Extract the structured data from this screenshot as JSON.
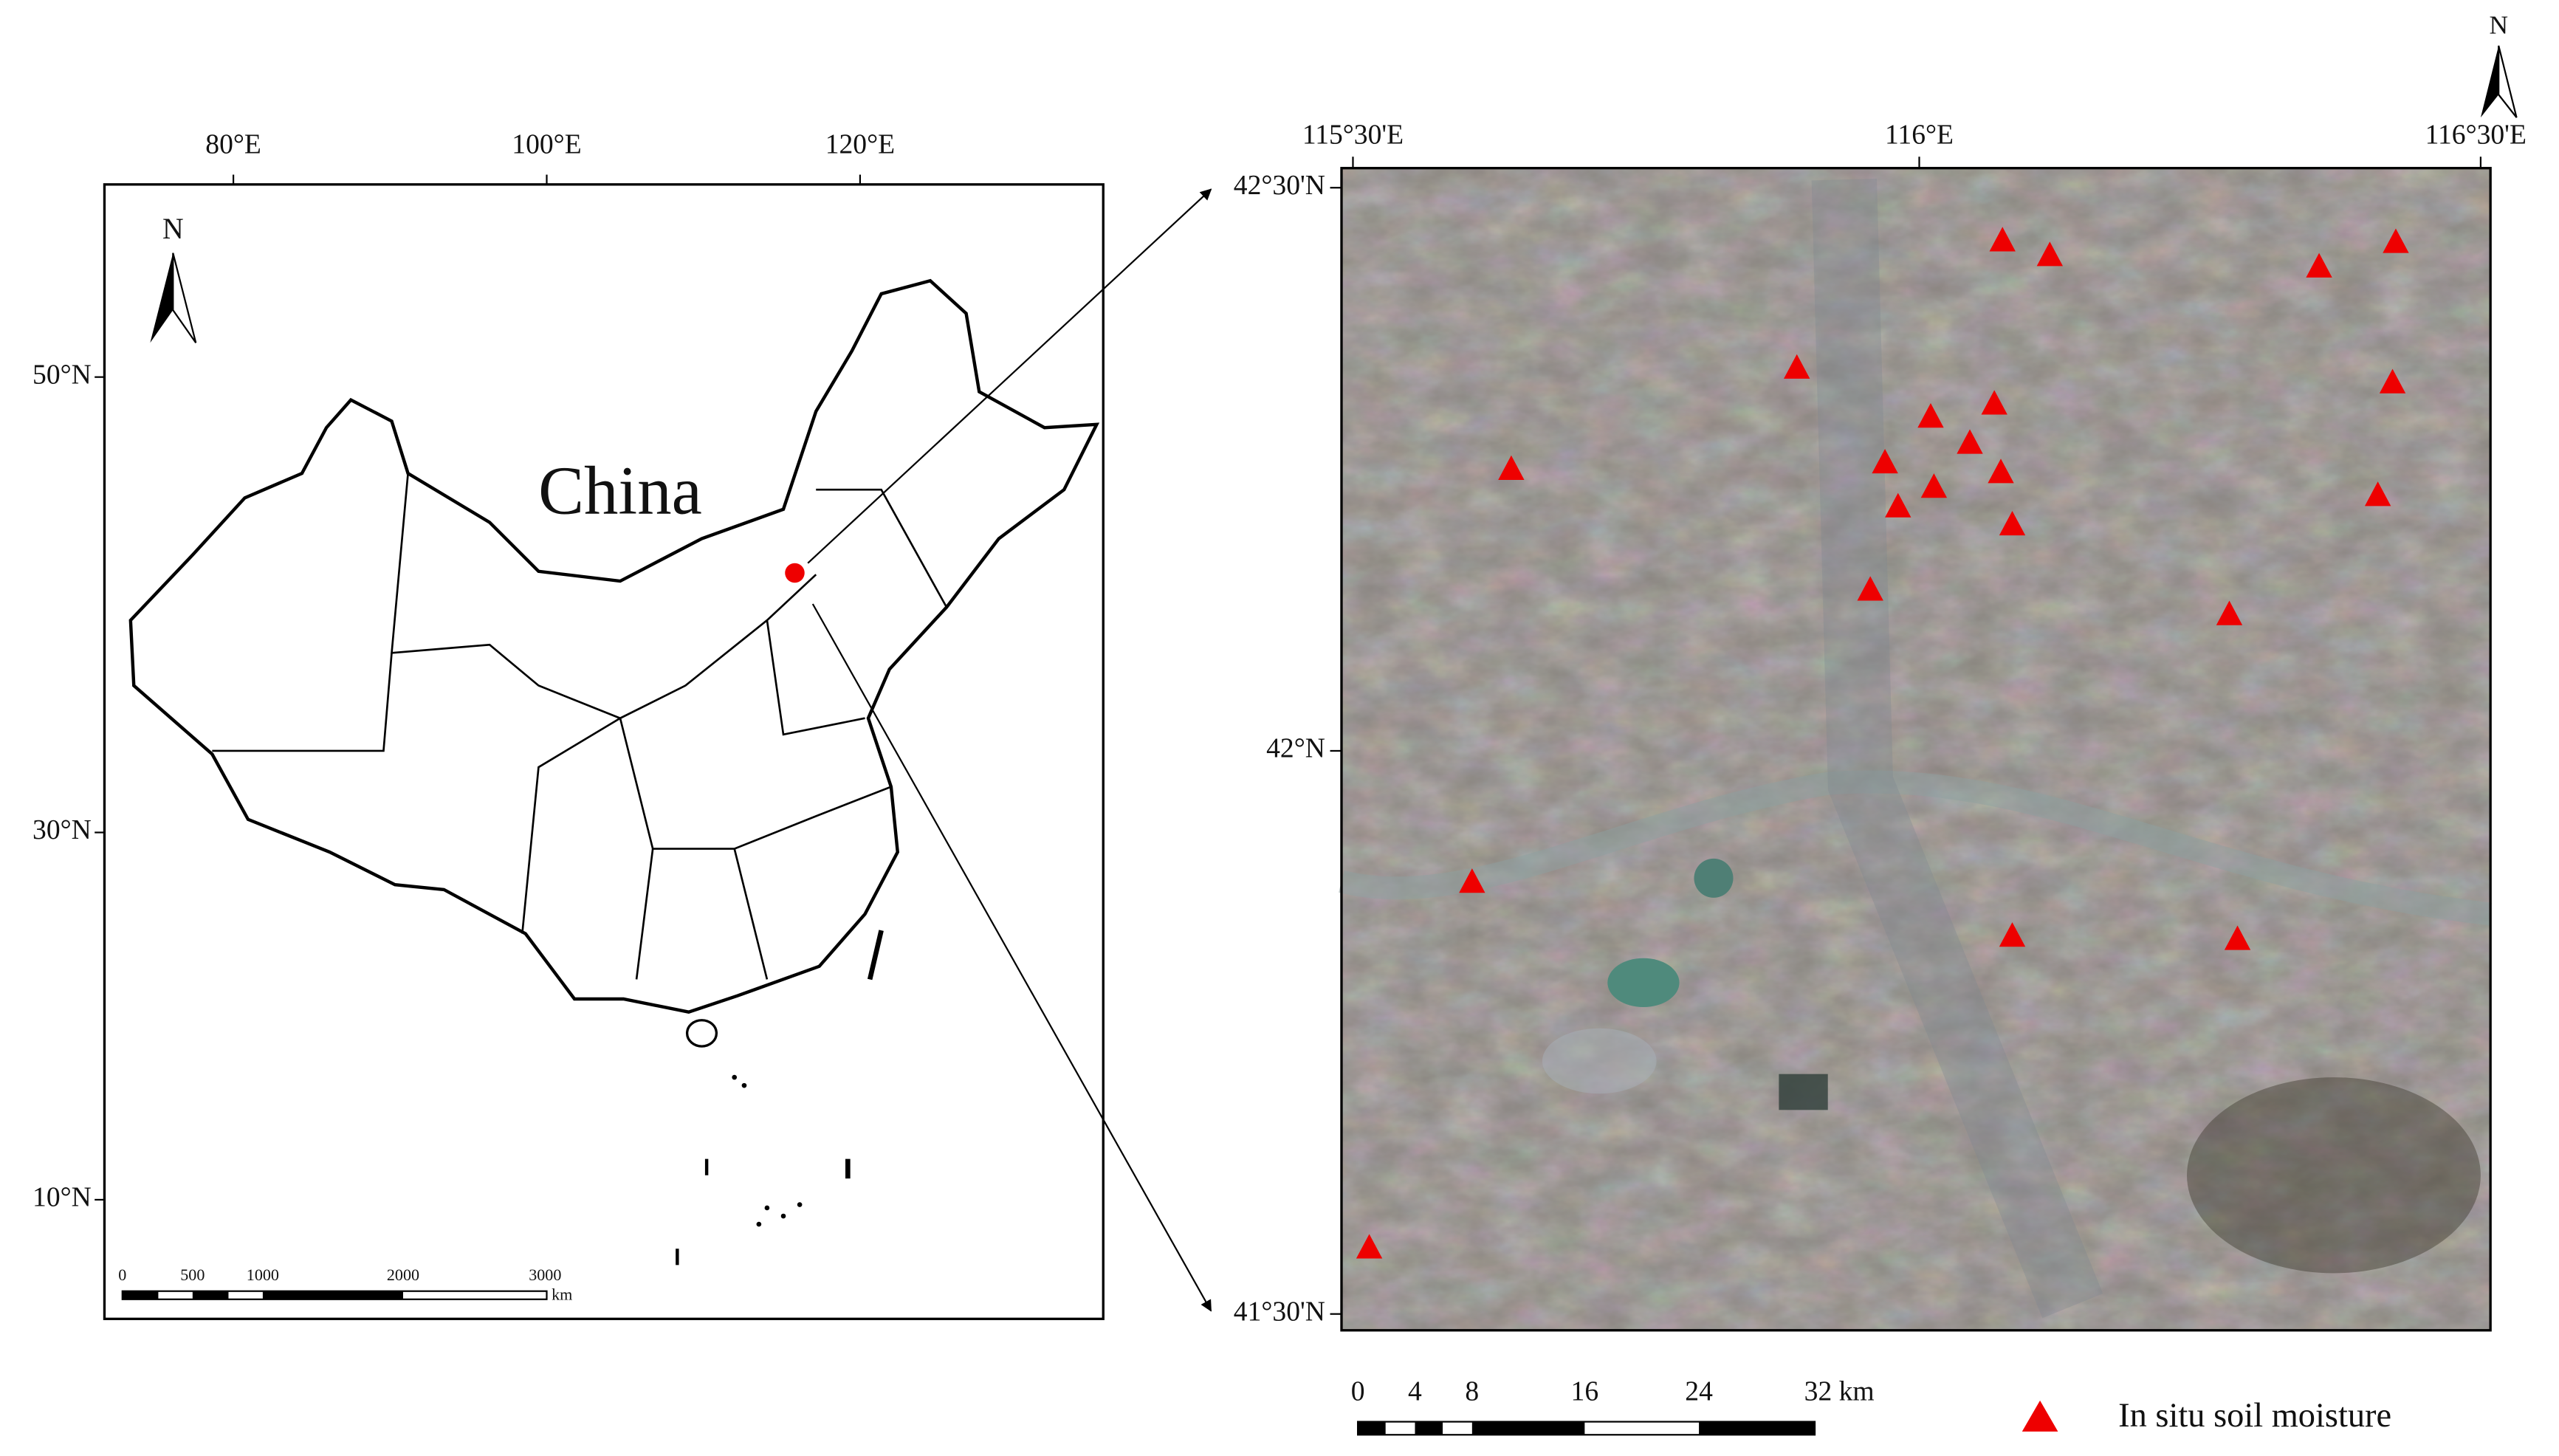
{
  "left_map": {
    "lon_labels": [
      "80°E",
      "100°E",
      "120°E"
    ],
    "lat_labels": [
      "50°N",
      "30°N",
      "10°N"
    ],
    "country": "China",
    "north": "N",
    "scale_labels": [
      "0",
      "500",
      "1000",
      "2000",
      "3000"
    ],
    "scale_unit": "km"
  },
  "right_map": {
    "lon_labels": [
      "115°30'E",
      "116°E",
      "116°30'E"
    ],
    "lat_labels": [
      "42°30'N",
      "42°N",
      "41°30'N"
    ],
    "north": "N",
    "scale_labels": [
      "0",
      "4",
      "8",
      "16",
      "24",
      "32 km"
    ],
    "legend": "In situ soil moisture"
  }
}
